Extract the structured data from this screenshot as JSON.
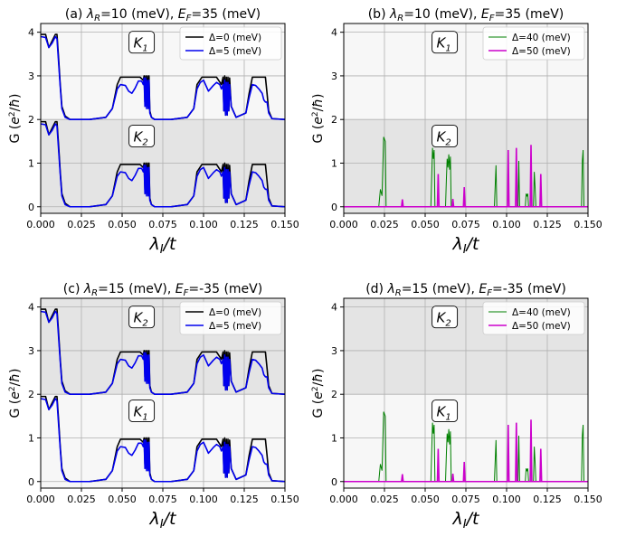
{
  "chart_data": [
    {
      "type": "line",
      "title": "(a) λR=10 (meV), EF=35 (meV)",
      "title_parts": {
        "pre": "(a) ",
        "lam": "λ",
        "lamsub": "R",
        "mid": "=10 (meV), ",
        "ef": "E",
        "efsub": "F",
        "post": "=35 (meV)"
      },
      "xlabel": "λI/t",
      "ylabel": "G (e2/ħ)",
      "xlim": [
        0,
        0.15
      ],
      "ylim": [
        -0.15,
        4.2
      ],
      "xticks": [
        "0.000",
        "0.025",
        "0.050",
        "0.075",
        "0.100",
        "0.125",
        "0.150"
      ],
      "yticks": [
        "0",
        "1",
        "2",
        "3",
        "4"
      ],
      "grid": true,
      "legend_position": "top-right",
      "bands": [
        {
          "from": 2,
          "to": 4.2,
          "color": "#f7f7f7"
        },
        {
          "from": -0.15,
          "to": 2,
          "color": "#e4e4e4"
        }
      ],
      "labels": [
        {
          "text": "K",
          "sub": "1",
          "x": 0.062,
          "y": 3.75
        },
        {
          "text": "K",
          "sub": "2",
          "x": 0.062,
          "y": 1.6
        }
      ],
      "kind": "total",
      "series": [
        {
          "name": "Δ=0 (meV)",
          "color": "#000000",
          "width": 1.6
        },
        {
          "name": "Δ=5 (meV)",
          "color": "#0000ee",
          "width": 1.6
        }
      ]
    },
    {
      "type": "line",
      "title": "(b) λR=10 (meV), EF=35 (meV)",
      "title_parts": {
        "pre": "(b) ",
        "lam": "λ",
        "lamsub": "R",
        "mid": "=10 (meV), ",
        "ef": "E",
        "efsub": "F",
        "post": "=35 (meV)"
      },
      "xlabel": "λI/t",
      "ylabel": "G (e2/ħ)",
      "xlim": [
        0,
        0.15
      ],
      "ylim": [
        -0.15,
        4.2
      ],
      "xticks": [
        "0.000",
        "0.025",
        "0.050",
        "0.075",
        "0.100",
        "0.125",
        "0.150"
      ],
      "yticks": [
        "0",
        "1",
        "2",
        "3",
        "4"
      ],
      "grid": true,
      "legend_position": "top-right",
      "bands": [
        {
          "from": 2,
          "to": 4.2,
          "color": "#f7f7f7"
        },
        {
          "from": -0.15,
          "to": 2,
          "color": "#e4e4e4"
        }
      ],
      "labels": [
        {
          "text": "K",
          "sub": "1",
          "x": 0.062,
          "y": 3.75
        },
        {
          "text": "K",
          "sub": "2",
          "x": 0.062,
          "y": 1.6
        }
      ],
      "kind": "spikes",
      "series": [
        {
          "name": "Δ=40 (meV)",
          "color": "#008000",
          "width": 1.0
        },
        {
          "name": "Δ=50 (meV)",
          "color": "#cc00cc",
          "width": 1.6
        }
      ]
    },
    {
      "type": "line",
      "title": "(c) λR=15 (meV), EF=-35 (meV)",
      "title_parts": {
        "pre": "(c) ",
        "lam": "λ",
        "lamsub": "R",
        "mid": "=15 (meV), ",
        "ef": "E",
        "efsub": "F",
        "post": "=-35 (meV)"
      },
      "xlabel": "λI/t",
      "ylabel": "G (e2/ħ)",
      "xlim": [
        0,
        0.15
      ],
      "ylim": [
        -0.15,
        4.2
      ],
      "xticks": [
        "0.000",
        "0.025",
        "0.050",
        "0.075",
        "0.100",
        "0.125",
        "0.150"
      ],
      "yticks": [
        "0",
        "1",
        "2",
        "3",
        "4"
      ],
      "grid": true,
      "legend_position": "top-right",
      "bands": [
        {
          "from": 2,
          "to": 4.2,
          "color": "#e4e4e4"
        },
        {
          "from": -0.15,
          "to": 2,
          "color": "#f7f7f7"
        }
      ],
      "labels": [
        {
          "text": "K",
          "sub": "2",
          "x": 0.062,
          "y": 3.75
        },
        {
          "text": "K",
          "sub": "1",
          "x": 0.062,
          "y": 1.6
        }
      ],
      "kind": "total",
      "series": [
        {
          "name": "Δ=0 (meV)",
          "color": "#000000",
          "width": 1.6
        },
        {
          "name": "Δ=5 (meV)",
          "color": "#0000ee",
          "width": 1.6
        }
      ]
    },
    {
      "type": "line",
      "title": "(d) λR=15 (meV), EF=-35 (meV)",
      "title_parts": {
        "pre": "(d) ",
        "lam": "λ",
        "lamsub": "R",
        "mid": "=15 (meV), ",
        "ef": "E",
        "efsub": "F",
        "post": "=-35 (meV)"
      },
      "xlabel": "λI/t",
      "ylabel": "G (e2/ħ)",
      "xlim": [
        0,
        0.15
      ],
      "ylim": [
        -0.15,
        4.2
      ],
      "xticks": [
        "0.000",
        "0.025",
        "0.050",
        "0.075",
        "0.100",
        "0.125",
        "0.150"
      ],
      "yticks": [
        "0",
        "1",
        "2",
        "3",
        "4"
      ],
      "grid": true,
      "legend_position": "top-right",
      "bands": [
        {
          "from": 2,
          "to": 4.2,
          "color": "#e4e4e4"
        },
        {
          "from": -0.15,
          "to": 2,
          "color": "#f7f7f7"
        }
      ],
      "labels": [
        {
          "text": "K",
          "sub": "2",
          "x": 0.062,
          "y": 3.75
        },
        {
          "text": "K",
          "sub": "1",
          "x": 0.062,
          "y": 1.6
        }
      ],
      "kind": "spikes",
      "series": [
        {
          "name": "Δ=40 (meV)",
          "color": "#008000",
          "width": 1.0
        },
        {
          "name": "Δ=50 (meV)",
          "color": "#cc00cc",
          "width": 1.6
        }
      ]
    }
  ],
  "curves": {
    "total": [
      {
        "x": [
          0.0,
          0.003,
          0.005,
          0.007,
          0.009,
          0.01,
          0.011,
          0.012,
          0.013,
          0.015,
          0.018,
          0.022,
          0.03,
          0.04,
          0.044,
          0.047,
          0.049,
          0.052,
          0.055,
          0.058,
          0.061,
          0.063,
          0.0635,
          0.064,
          0.0645,
          0.065,
          0.0655,
          0.066,
          0.0665,
          0.067,
          0.068,
          0.07,
          0.073,
          0.08,
          0.09,
          0.094,
          0.096,
          0.099,
          0.102,
          0.105,
          0.108,
          0.111,
          0.112,
          0.1125,
          0.113,
          0.1135,
          0.114,
          0.1145,
          0.115,
          0.1155,
          0.116,
          0.117,
          0.12,
          0.126,
          0.128,
          0.13,
          0.133,
          0.136,
          0.138,
          0.139,
          0.14,
          0.142,
          0.15
        ],
        "y": [
          3.95,
          3.95,
          3.65,
          3.8,
          3.95,
          3.95,
          3.4,
          2.8,
          2.3,
          2.08,
          2.0,
          2.0,
          2.0,
          2.05,
          2.25,
          2.8,
          2.97,
          2.97,
          2.97,
          2.97,
          2.97,
          2.9,
          3.0,
          2.4,
          3.0,
          2.3,
          3.0,
          2.3,
          3.0,
          2.2,
          2.05,
          2.0,
          2.0,
          2.0,
          2.05,
          2.25,
          2.8,
          2.97,
          2.97,
          2.97,
          2.97,
          2.8,
          2.97,
          2.2,
          3.0,
          2.1,
          2.97,
          2.1,
          2.97,
          2.2,
          2.95,
          2.3,
          2.05,
          2.15,
          2.6,
          2.97,
          2.97,
          2.97,
          2.97,
          2.6,
          2.2,
          2.02,
          2.0
        ],
        "dy": -2
      },
      {
        "x": [
          0.0,
          0.003,
          0.005,
          0.007,
          0.009,
          0.01,
          0.011,
          0.012,
          0.013,
          0.015,
          0.018,
          0.022,
          0.03,
          0.04,
          0.044,
          0.047,
          0.049,
          0.052,
          0.054,
          0.056,
          0.058,
          0.06,
          0.062,
          0.063,
          0.0635,
          0.064,
          0.0645,
          0.065,
          0.0655,
          0.066,
          0.0665,
          0.067,
          0.068,
          0.07,
          0.073,
          0.08,
          0.09,
          0.094,
          0.096,
          0.098,
          0.1,
          0.103,
          0.106,
          0.108,
          0.11,
          0.111,
          0.112,
          0.1125,
          0.113,
          0.1135,
          0.114,
          0.1145,
          0.115,
          0.1155,
          0.116,
          0.117,
          0.12,
          0.126,
          0.128,
          0.13,
          0.132,
          0.134,
          0.136,
          0.137,
          0.138,
          0.139,
          0.14,
          0.142,
          0.15
        ],
        "y": [
          3.9,
          3.88,
          3.65,
          3.75,
          3.9,
          3.85,
          3.3,
          2.75,
          2.25,
          2.05,
          2.0,
          2.0,
          2.0,
          2.05,
          2.25,
          2.7,
          2.8,
          2.78,
          2.65,
          2.6,
          2.72,
          2.88,
          2.88,
          2.8,
          2.95,
          2.3,
          2.95,
          2.25,
          2.9,
          2.25,
          2.9,
          2.15,
          2.05,
          2.0,
          2.0,
          2.0,
          2.05,
          2.25,
          2.7,
          2.85,
          2.9,
          2.65,
          2.78,
          2.85,
          2.8,
          2.7,
          2.8,
          2.2,
          2.9,
          2.1,
          2.85,
          2.1,
          2.85,
          2.2,
          2.8,
          2.3,
          2.05,
          2.15,
          2.5,
          2.8,
          2.78,
          2.7,
          2.6,
          2.45,
          2.4,
          2.4,
          2.15,
          2.02,
          2.0
        ],
        "dy": -2
      }
    ],
    "spikes": [
      {
        "segments": [
          [
            [
              0.0215,
              0
            ],
            [
              0.0225,
              0.4
            ],
            [
              0.0235,
              0.25
            ],
            [
              0.0245,
              1.6
            ],
            [
              0.0255,
              1.5
            ],
            [
              0.026,
              0
            ]
          ],
          [
            [
              0.0535,
              0
            ],
            [
              0.0545,
              1.35
            ],
            [
              0.055,
              1.1
            ],
            [
              0.0555,
              1.3
            ],
            [
              0.056,
              0
            ]
          ],
          [
            [
              0.0625,
              0
            ],
            [
              0.063,
              0.6
            ],
            [
              0.0635,
              1.1
            ],
            [
              0.064,
              0.9
            ],
            [
              0.0645,
              1.2
            ],
            [
              0.065,
              0.85
            ],
            [
              0.0655,
              1.15
            ],
            [
              0.066,
              0
            ]
          ],
          [
            [
              0.0925,
              0
            ],
            [
              0.0935,
              0.95
            ],
            [
              0.094,
              0
            ]
          ],
          [
            [
              0.107,
              0
            ],
            [
              0.1075,
              1.05
            ],
            [
              0.108,
              0
            ]
          ],
          [
            [
              0.1115,
              0
            ],
            [
              0.112,
              0.3
            ],
            [
              0.1125,
              0.25
            ],
            [
              0.113,
              0.3
            ],
            [
              0.1135,
              0
            ]
          ],
          [
            [
              0.1165,
              0
            ],
            [
              0.117,
              0.8
            ],
            [
              0.1175,
              0.45
            ],
            [
              0.118,
              0
            ]
          ],
          [
            [
              0.146,
              0
            ],
            [
              0.1465,
              1.05
            ],
            [
              0.147,
              1.3
            ],
            [
              0.1475,
              0
            ]
          ]
        ],
        "dy": 0
      },
      {
        "segments": [
          [
            [
              0.0355,
              0
            ],
            [
              0.036,
              0.17
            ],
            [
              0.0365,
              0
            ]
          ],
          [
            [
              0.0575,
              0
            ],
            [
              0.058,
              0.75
            ],
            [
              0.0585,
              0
            ]
          ],
          [
            [
              0.0665,
              0
            ],
            [
              0.067,
              0.18
            ],
            [
              0.0675,
              0
            ]
          ],
          [
            [
              0.0735,
              0
            ],
            [
              0.074,
              0.45
            ],
            [
              0.0745,
              0
            ]
          ],
          [
            [
              0.1005,
              0
            ],
            [
              0.101,
              1.3
            ],
            [
              0.1015,
              0
            ]
          ],
          [
            [
              0.1055,
              0
            ],
            [
              0.106,
              1.35
            ],
            [
              0.1065,
              0
            ]
          ],
          [
            [
              0.1145,
              0
            ],
            [
              0.115,
              1.42
            ],
            [
              0.1155,
              0
            ]
          ],
          [
            [
              0.1205,
              0
            ],
            [
              0.121,
              0.75
            ],
            [
              0.1215,
              0
            ]
          ]
        ],
        "dy": 0
      }
    ]
  }
}
